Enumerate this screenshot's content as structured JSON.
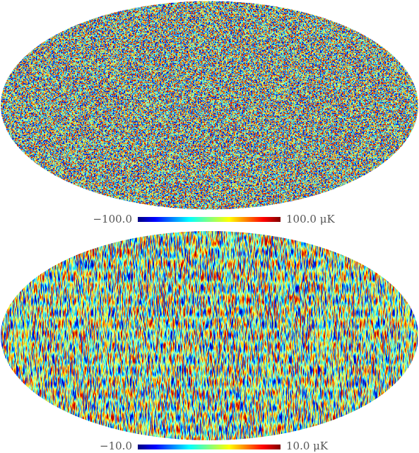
{
  "maps": [
    {
      "min_label": "−100.0",
      "max_label": "100.0 μK"
    },
    {
      "min_label": "−10.0",
      "max_label": "10.0 μK"
    }
  ]
}
